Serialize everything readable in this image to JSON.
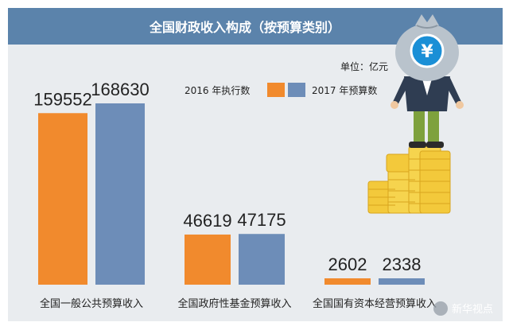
{
  "colors": {
    "header": "#5b83ab",
    "panel": "#e9ecef",
    "series_2016": "#f18a2d",
    "series_2017": "#6d8db8",
    "coin": "#f3c93b",
    "bag": "#b9c3cc",
    "suit": "#2f3d52",
    "pants": "#7ea13d"
  },
  "watermark": "新华视点",
  "illustration": {
    "currency_icon": "yuan-sign-icon",
    "currency_symbol": "¥"
  },
  "chart_data": {
    "type": "bar",
    "title": "全国财政收入构成（按预算类别）",
    "unit": "单位：亿元",
    "categories": [
      "全国一般公共预算收入",
      "全国政府性基金预算收入",
      "全国国有资本经营预算收入"
    ],
    "series": [
      {
        "name": "2016 年执行数",
        "values": [
          159552,
          46619,
          2602
        ]
      },
      {
        "name": "2017 年预算数",
        "values": [
          168630,
          47175,
          2338
        ]
      }
    ],
    "ylim": [
      0,
      200000
    ],
    "legend": "top-center",
    "grid": false
  }
}
